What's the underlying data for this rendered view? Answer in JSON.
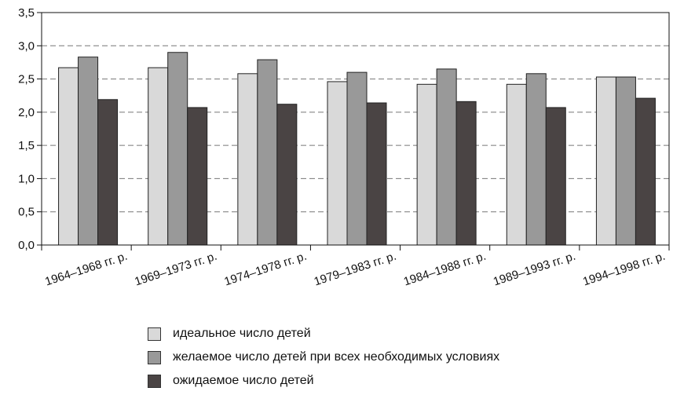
{
  "chart_data": {
    "type": "bar",
    "categories": [
      "1964–1968 гг. р.",
      "1969–1973 гг. р.",
      "1974–1978 гг. р.",
      "1979–1983 гг. р.",
      "1984–1988 гг. р.",
      "1989–1993 гг. р.",
      "1994–1998 гг. р."
    ],
    "series": [
      {
        "name": "идеальное число детей",
        "color": "#d9d9d9",
        "values": [
          2.67,
          2.67,
          2.58,
          2.46,
          2.42,
          2.42,
          2.53
        ]
      },
      {
        "name": "желаемое число детей при всех необходимых условиях",
        "color": "#999999",
        "values": [
          2.83,
          2.9,
          2.79,
          2.6,
          2.65,
          2.58,
          2.53
        ]
      },
      {
        "name": "ожидаемое число детей",
        "color": "#4a4444",
        "values": [
          2.19,
          2.07,
          2.12,
          2.14,
          2.16,
          2.07,
          2.21
        ]
      }
    ],
    "y_ticks": [
      "0,0",
      "0,5",
      "1,0",
      "1,5",
      "2,0",
      "2,5",
      "3,0",
      "3,5"
    ],
    "ylim": [
      0,
      3.5
    ],
    "grid": true,
    "legend_position": "bottom"
  }
}
